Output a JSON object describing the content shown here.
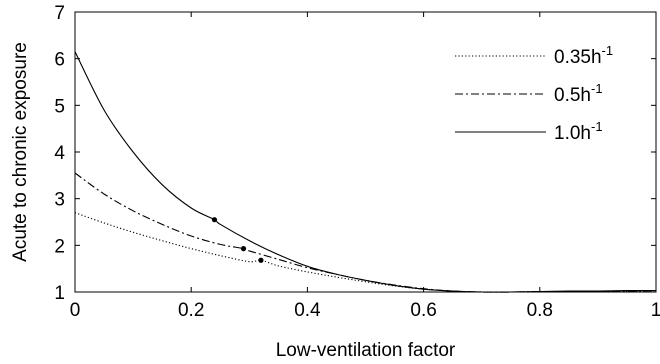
{
  "chart_data": {
    "type": "line",
    "xlabel": "Low-ventilation factor",
    "ylabel": "Acute to chronic exposure",
    "xlim": [
      0,
      1
    ],
    "ylim": [
      1,
      7
    ],
    "xticks": [
      0,
      0.2,
      0.4,
      0.6,
      0.8,
      1
    ],
    "xtick_labels": [
      "0",
      "0.2",
      "0.4",
      "0.6",
      "0.8",
      "1"
    ],
    "yticks": [
      1,
      2,
      3,
      4,
      5,
      6,
      7
    ],
    "ytick_labels": [
      "1",
      "2",
      "3",
      "4",
      "5",
      "6",
      "7"
    ],
    "grid": false,
    "legend_position": "top-right",
    "series": [
      {
        "name": "0.35h",
        "name_sup": "-1",
        "style": "dotted",
        "x": [
          0,
          0.05,
          0.1,
          0.15,
          0.2,
          0.25,
          0.3,
          0.32,
          0.35,
          0.4,
          0.45,
          0.5,
          0.55,
          0.6,
          0.65,
          0.7,
          0.75,
          0.8,
          0.85,
          0.9,
          0.95,
          1.0
        ],
        "y": [
          2.7,
          2.48,
          2.28,
          2.1,
          1.93,
          1.78,
          1.65,
          1.68,
          1.56,
          1.43,
          1.32,
          1.22,
          1.13,
          1.06,
          1.02,
          1.0,
          1.0,
          1.01,
          1.01,
          1.02,
          1.02,
          1.03
        ],
        "marker_points": [
          [
            0.32,
            1.68
          ]
        ]
      },
      {
        "name": "0.5h",
        "name_sup": "-1",
        "style": "dashdot",
        "x": [
          0,
          0.05,
          0.1,
          0.15,
          0.2,
          0.25,
          0.29,
          0.3,
          0.35,
          0.4,
          0.45,
          0.5,
          0.55,
          0.6,
          0.65,
          0.7,
          0.75,
          0.8,
          0.85,
          0.9,
          0.95,
          1.0
        ],
        "y": [
          3.55,
          3.1,
          2.74,
          2.45,
          2.2,
          2.02,
          1.93,
          1.88,
          1.7,
          1.52,
          1.38,
          1.25,
          1.15,
          1.07,
          1.02,
          1.0,
          1.0,
          1.01,
          1.01,
          1.02,
          1.02,
          1.03
        ],
        "marker_points": [
          [
            0.29,
            1.93
          ]
        ]
      },
      {
        "name": "1.0h",
        "name_sup": "-1",
        "style": "solid",
        "x": [
          0,
          0.05,
          0.1,
          0.15,
          0.2,
          0.24,
          0.25,
          0.3,
          0.35,
          0.4,
          0.45,
          0.5,
          0.55,
          0.6,
          0.65,
          0.7,
          0.75,
          0.8,
          0.85,
          0.9,
          0.95,
          1.0
        ],
        "y": [
          6.15,
          4.9,
          4.0,
          3.3,
          2.8,
          2.55,
          2.45,
          2.1,
          1.8,
          1.55,
          1.38,
          1.25,
          1.14,
          1.06,
          1.02,
          1.0,
          1.0,
          1.01,
          1.02,
          1.02,
          1.03,
          1.03
        ],
        "marker_points": [
          [
            0.24,
            2.55
          ]
        ]
      }
    ]
  }
}
